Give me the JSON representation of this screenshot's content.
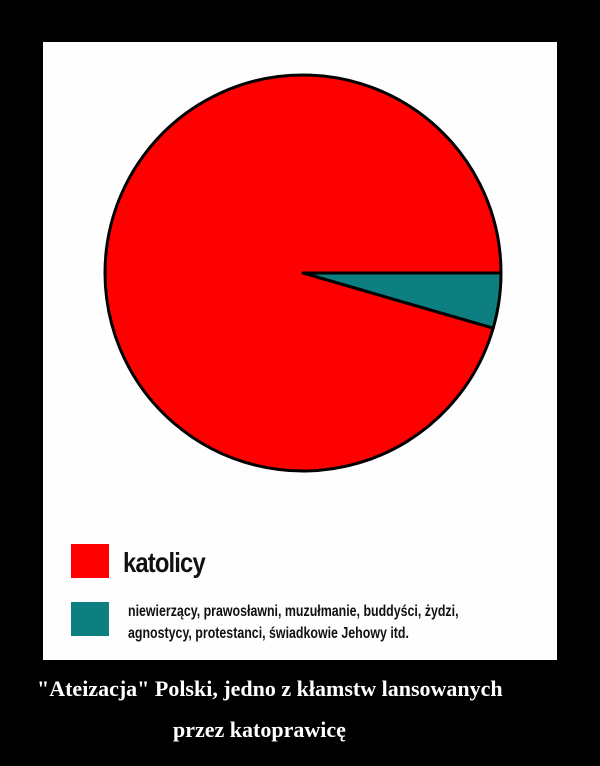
{
  "chart_data": {
    "type": "pie",
    "slices": [
      {
        "label": "katolicy",
        "value": 95.5,
        "color": "#ff0000"
      },
      {
        "label": "niewierzący, prawosławni, muzułmanie, buddyści, żydzi, agnostycy, protestanci, świadkowie Jehowy itd.",
        "value": 4.5,
        "color": "#0e7f80"
      }
    ],
    "start_angle_deg": 0,
    "direction": "clockwise",
    "legend_position": "bottom-left"
  },
  "legend": {
    "line1": "katolicy",
    "line2a": "niewierzący, prawosławni, muzułmanie, buddyści, żydzi,",
    "line2b": "agnostycy, protestanci, świadkowie Jehowy itd."
  },
  "caption": {
    "line1": "\"Ateizacja\" Polski, jedno z kłamstw lansowanych",
    "line2": "przez katoprawicę"
  }
}
